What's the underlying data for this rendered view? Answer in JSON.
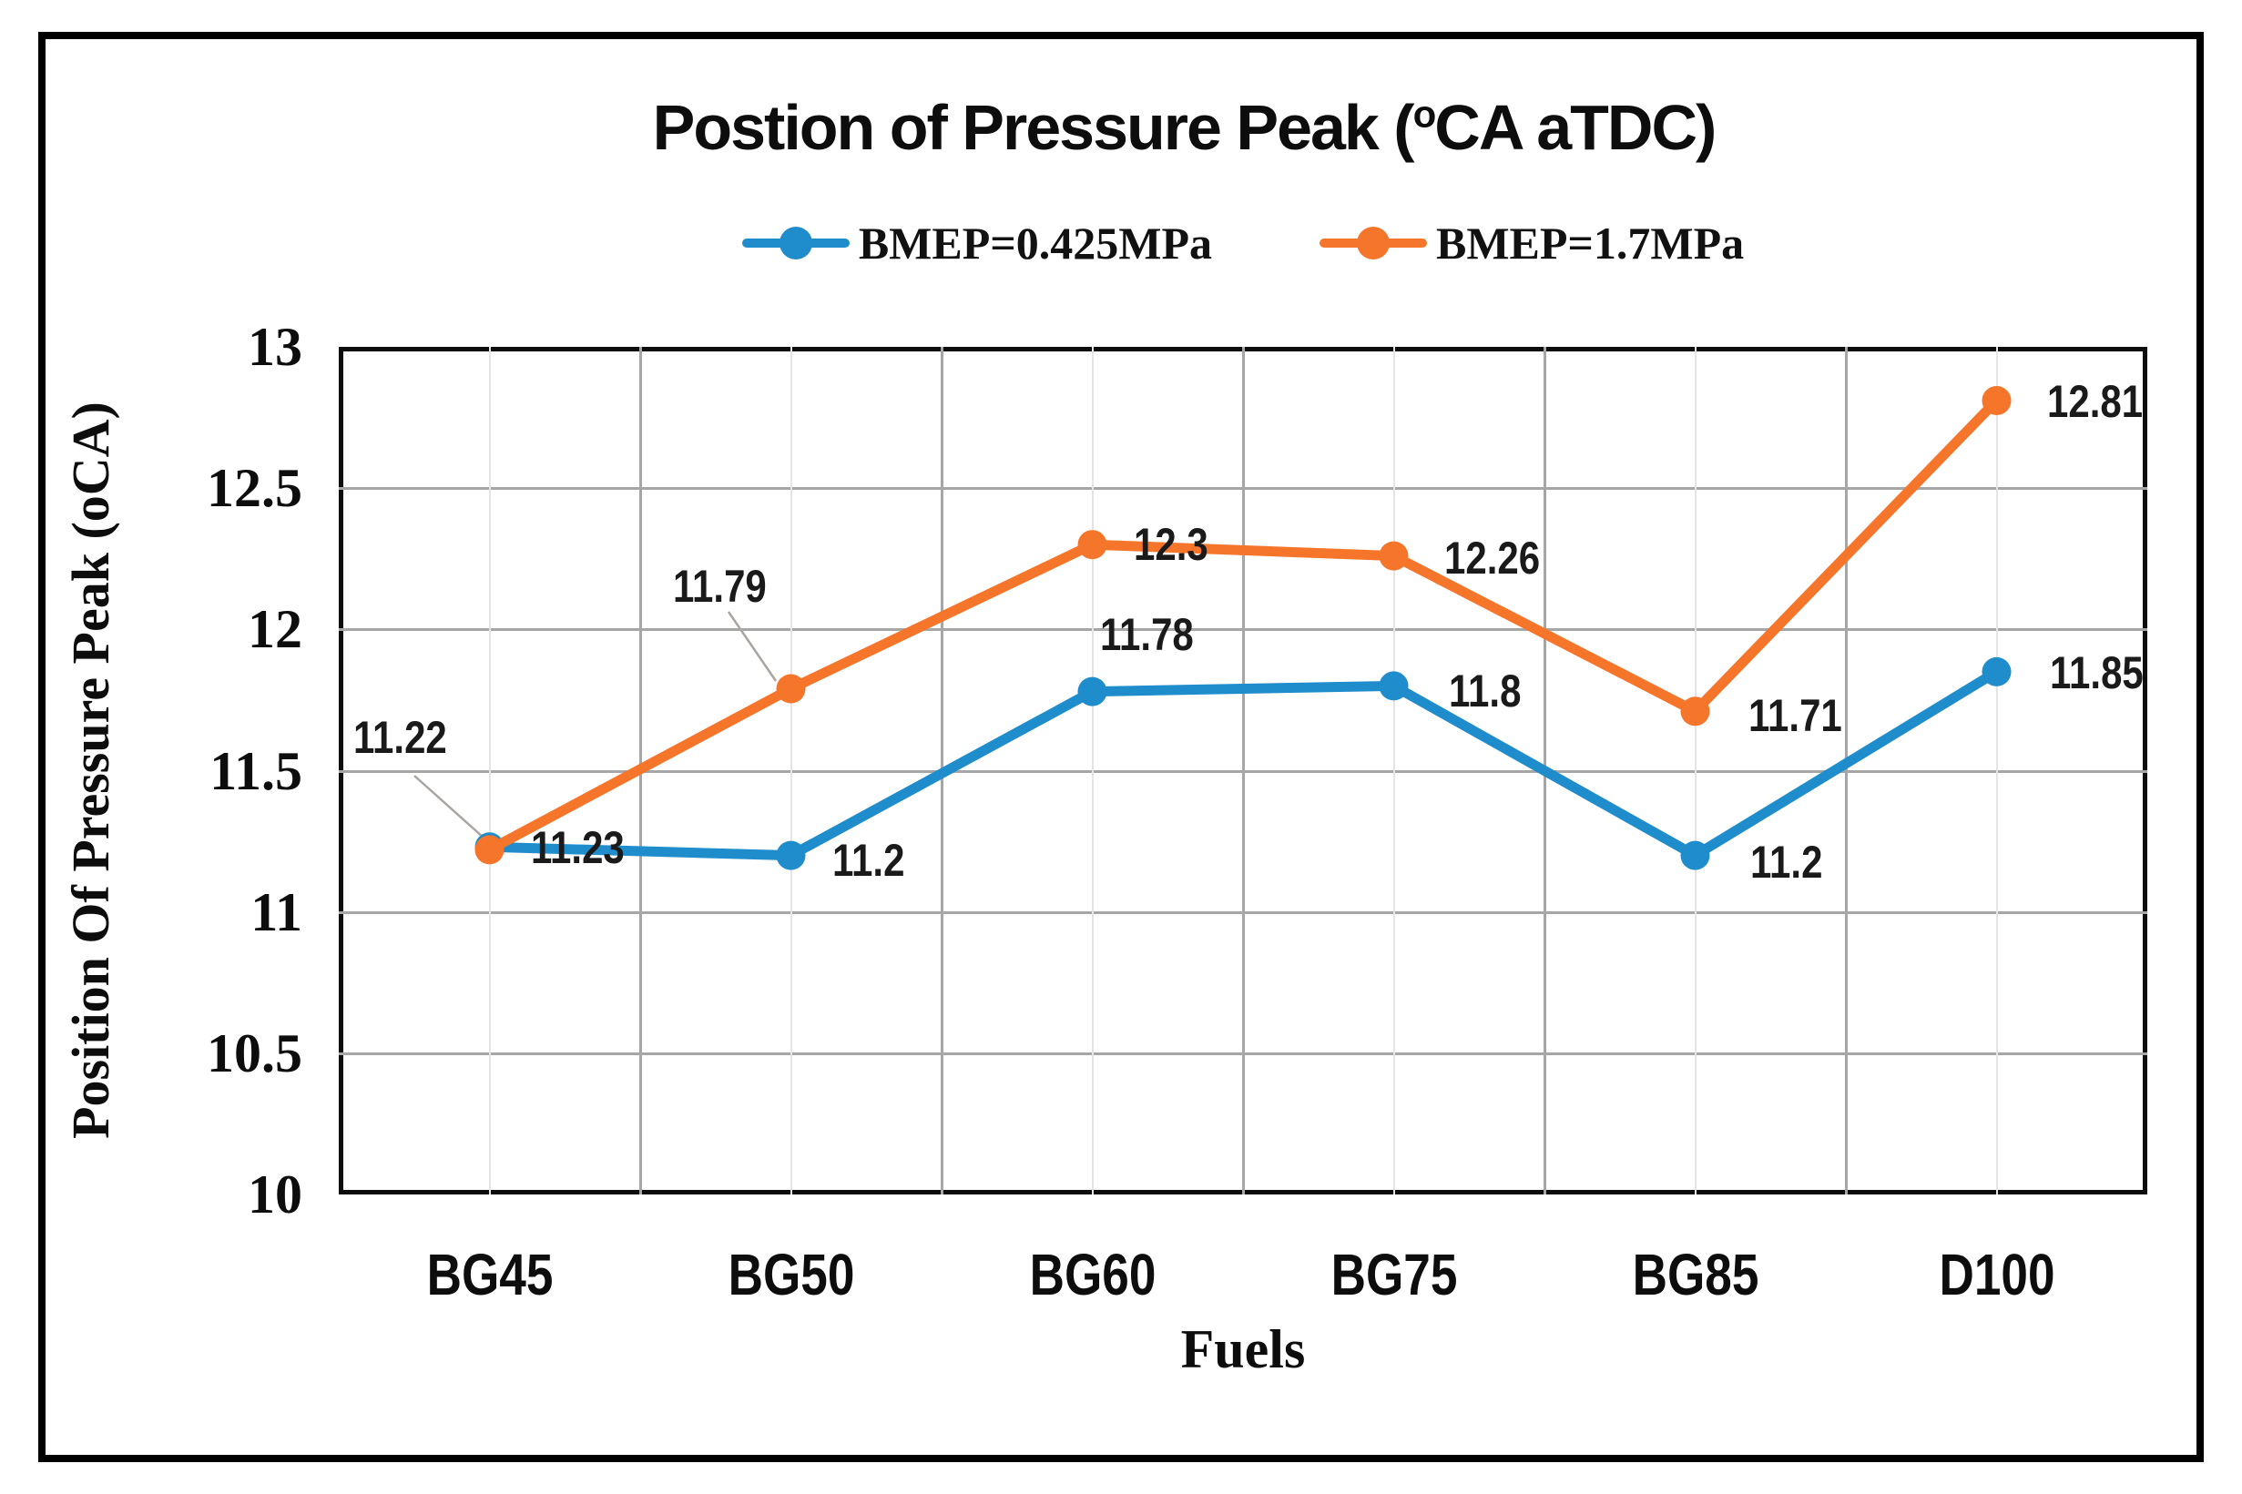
{
  "figure": {
    "title": {
      "prefix": "Postion of Pressure Peak (",
      "sup": "o",
      "suffix": "CA aTDC)"
    }
  },
  "legend": [
    {
      "label": "BMEP=0.425MPa",
      "color": "#1F8CCB"
    },
    {
      "label": "BMEP=1.7MPa",
      "color": "#F5752B"
    }
  ],
  "chart_data": {
    "type": "line",
    "title": "Postion of Pressure Peak (oCA aTDC)",
    "categories": [
      "BG45",
      "BG50",
      "BG60",
      "BG75",
      "BG85",
      "D100"
    ],
    "series": [
      {
        "name": "BMEP=0.425MPa",
        "color": "#1F8CCB",
        "values": [
          11.23,
          11.2,
          11.78,
          11.8,
          11.2,
          11.85
        ],
        "labels": [
          "11.23",
          "11.2",
          "11.78",
          "11.8",
          "11.2",
          "11.85"
        ]
      },
      {
        "name": "BMEP=1.7MPa",
        "color": "#F5752B",
        "values": [
          11.22,
          11.79,
          12.3,
          12.26,
          11.71,
          12.81
        ],
        "labels": [
          "11.22",
          "11.79",
          "12.3",
          "12.26",
          "11.71",
          "12.81"
        ]
      }
    ],
    "xlabel": "Fuels",
    "ylabel": "Position Of Pressure Peak (oCA)",
    "ylim": [
      10,
      13
    ],
    "yticks": [
      10,
      10.5,
      11,
      11.5,
      12,
      12.5,
      13
    ],
    "ytick_labels": [
      "10",
      "10.5",
      "11",
      "11.5",
      "12",
      "12.5",
      "13"
    ],
    "grid": true,
    "legend_position": "top",
    "marker": "circle",
    "gridline_color": "#a6a6a6",
    "leader_line_color": "#aba5a1"
  }
}
